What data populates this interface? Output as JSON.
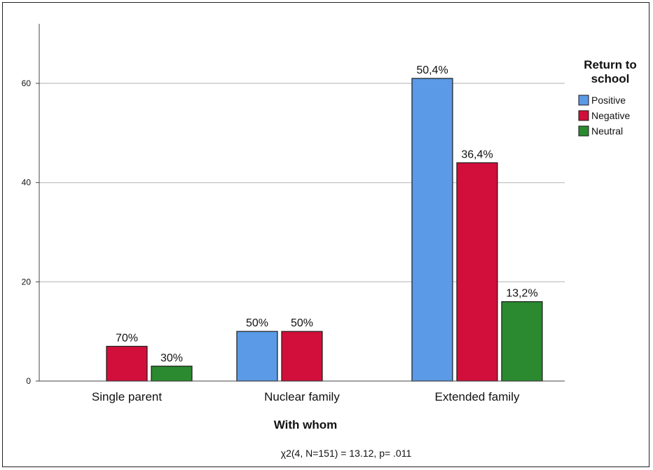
{
  "chart_data": {
    "type": "bar",
    "categories": [
      "Single parent",
      "Nuclear family",
      "Extended family"
    ],
    "series": [
      {
        "name": "Positive",
        "color": "#5a9ae6",
        "values": [
          0,
          10,
          61
        ],
        "labels": [
          "",
          "50%",
          "50,4%"
        ]
      },
      {
        "name": "Negative",
        "color": "#d10f3a",
        "values": [
          7,
          10,
          44
        ],
        "labels": [
          "70%",
          "50%",
          "36,4%"
        ]
      },
      {
        "name": "Neutral",
        "color": "#2b8a2f",
        "values": [
          3,
          0,
          16
        ],
        "labels": [
          "30%",
          "",
          "13,2%"
        ]
      }
    ],
    "xlabel": "With whom",
    "ylabel": "",
    "ylim": [
      0,
      72
    ],
    "yticks": [
      0,
      20,
      40,
      60
    ],
    "grid": true,
    "legend": {
      "title": "Return to school",
      "title_lines": [
        "Return to",
        "school"
      ],
      "placement": "right"
    },
    "annotation": "χ2(4, N=151) = 13.12, p= .011"
  }
}
